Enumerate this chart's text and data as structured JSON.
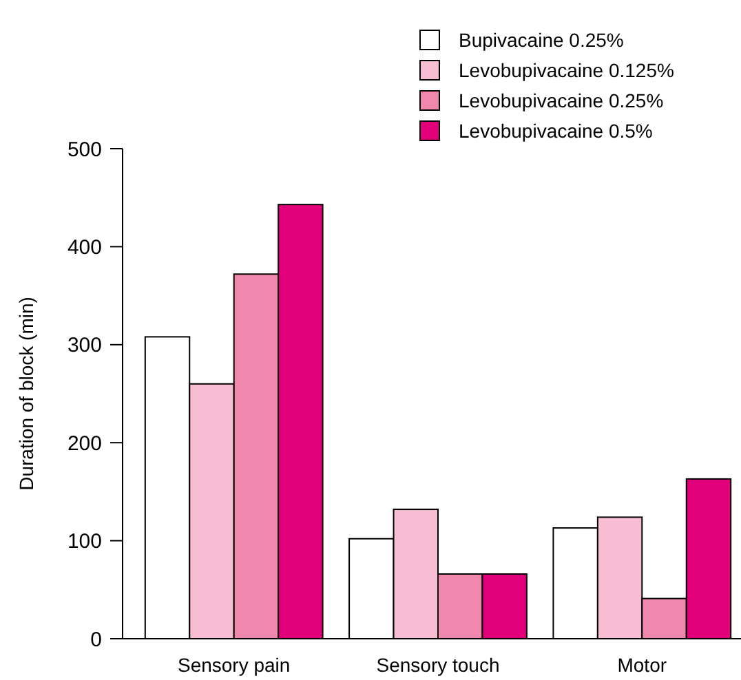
{
  "chart_data": {
    "type": "bar",
    "ylabel": "Duration of block (min)",
    "categories": [
      "Sensory pain",
      "Sensory touch",
      "Motor"
    ],
    "series": [
      {
        "name": "Bupivacaine 0.25%",
        "color": "#ffffff",
        "values": [
          308,
          102,
          113
        ]
      },
      {
        "name": "Levobupivacaine 0.125%",
        "color": "#f7bed3",
        "values": [
          260,
          132,
          124
        ]
      },
      {
        "name": "Levobupivacaine 0.25%",
        "color": "#f088ad",
        "values": [
          372,
          66,
          41
        ]
      },
      {
        "name": "Levobupivacaine 0.5%",
        "color": "#e2007a",
        "values": [
          443,
          66,
          163
        ]
      }
    ],
    "ylim": [
      0,
      500
    ],
    "yticks": [
      0,
      100,
      200,
      300,
      400,
      500
    ],
    "grid": false,
    "legend": "top right"
  }
}
